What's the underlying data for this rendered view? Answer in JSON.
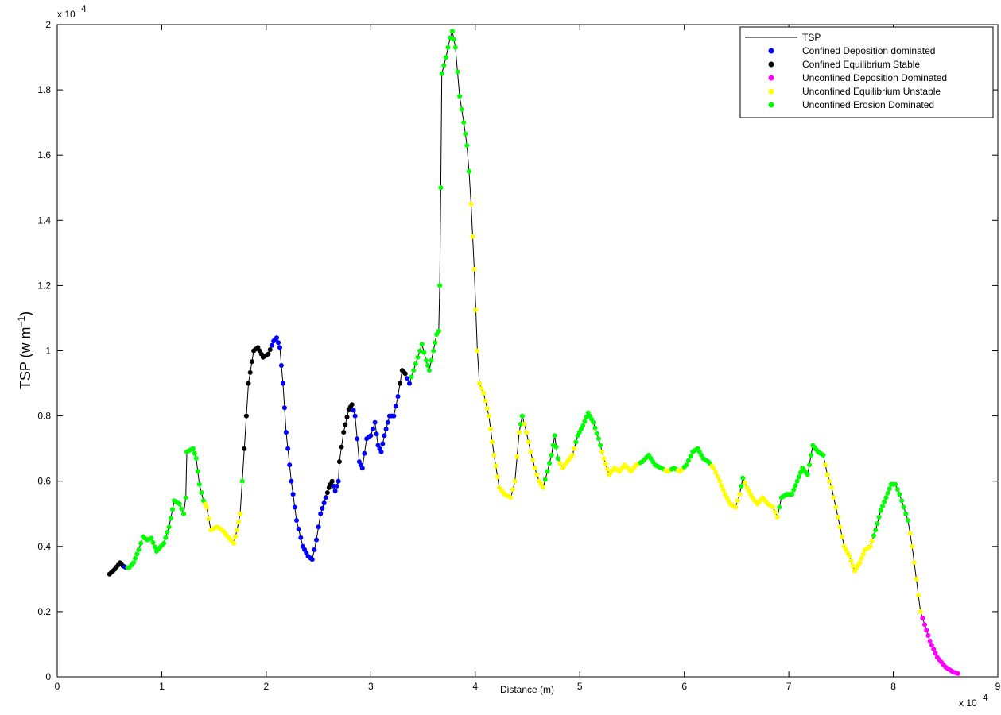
{
  "chart_data": {
    "type": "line",
    "title": "",
    "xlabel": "Distance (m)",
    "ylabel": "TSP (w m",
    "ylabel_sup": "−1",
    "ylabel_close": ")",
    "x_exponent_label": "x 10",
    "x_exponent": "4",
    "y_exponent_label": "x 10",
    "y_exponent": "4",
    "xlim": [
      0,
      90000
    ],
    "ylim": [
      0,
      20000
    ],
    "x_ticks": [
      0,
      10000,
      20000,
      30000,
      40000,
      50000,
      60000,
      70000,
      80000,
      90000
    ],
    "x_tick_labels": [
      "0",
      "1",
      "2",
      "3",
      "4",
      "5",
      "6",
      "7",
      "8",
      "9"
    ],
    "y_ticks": [
      0,
      2000,
      4000,
      6000,
      8000,
      10000,
      12000,
      14000,
      16000,
      18000,
      20000
    ],
    "y_tick_labels": [
      "0",
      "0.2",
      "0.4",
      "0.6",
      "0.8",
      "1",
      "1.2",
      "1.4",
      "1.6",
      "1.8",
      "2"
    ],
    "grid": false,
    "legend_position": "top-right",
    "colors": {
      "line": "#000000",
      "confined_deposition": "#0000ff",
      "confined_equilibrium": "#000000",
      "unconfined_deposition": "#ff00ff",
      "unconfined_equilibrium": "#ffff00",
      "unconfined_erosion": "#00ff00"
    },
    "legend": [
      {
        "name": "TSP",
        "kind": "line",
        "color_key": "line"
      },
      {
        "name": "Confined Deposition dominated",
        "kind": "marker",
        "color_key": "confined_deposition"
      },
      {
        "name": "Confined Equilibrium Stable",
        "kind": "marker",
        "color_key": "confined_equilibrium"
      },
      {
        "name": "Unconfined Deposition Dominated",
        "kind": "marker",
        "color_key": "unconfined_deposition"
      },
      {
        "name": "Unconfined Equilibrium Unstable",
        "kind": "marker",
        "color_key": "unconfined_equilibrium"
      },
      {
        "name": "Unconfined Erosion Dominated",
        "kind": "marker",
        "color_key": "unconfined_erosion"
      }
    ],
    "profile": [
      [
        5000,
        3150,
        "k"
      ],
      [
        5500,
        3300,
        "k"
      ],
      [
        6000,
        3500,
        "k"
      ],
      [
        6300,
        3400,
        "k"
      ],
      [
        6600,
        3350,
        "b"
      ],
      [
        6900,
        3350,
        "g"
      ],
      [
        7300,
        3500,
        "g"
      ],
      [
        7800,
        3900,
        "g"
      ],
      [
        8200,
        4300,
        "g"
      ],
      [
        8600,
        4200,
        "g"
      ],
      [
        9000,
        4250,
        "g"
      ],
      [
        9500,
        3850,
        "g"
      ],
      [
        10200,
        4100,
        "g"
      ],
      [
        10700,
        4600,
        "g"
      ],
      [
        11200,
        5400,
        "g"
      ],
      [
        11700,
        5300,
        "g"
      ],
      [
        12100,
        5000,
        "g"
      ],
      [
        12300,
        5500,
        "g"
      ],
      [
        12400,
        6900,
        "g"
      ],
      [
        13000,
        7000,
        "g"
      ],
      [
        13300,
        6700,
        "g"
      ],
      [
        13600,
        5900,
        "g"
      ],
      [
        14000,
        5400,
        "g"
      ],
      [
        14300,
        5200,
        "y"
      ],
      [
        14700,
        4500,
        "y"
      ],
      [
        15300,
        4600,
        "y"
      ],
      [
        15800,
        4500,
        "y"
      ],
      [
        16300,
        4300,
        "y"
      ],
      [
        16900,
        4100,
        "y"
      ],
      [
        17200,
        4500,
        "y"
      ],
      [
        17500,
        5000,
        "y"
      ],
      [
        17700,
        6000,
        "g"
      ],
      [
        17900,
        7000,
        "k"
      ],
      [
        18300,
        9000,
        "k"
      ],
      [
        18800,
        10000,
        "k"
      ],
      [
        19200,
        10100,
        "k"
      ],
      [
        19700,
        9800,
        "k"
      ],
      [
        20200,
        9900,
        "k"
      ],
      [
        20700,
        10300,
        "b"
      ],
      [
        21000,
        10400,
        "b"
      ],
      [
        21300,
        10100,
        "b"
      ],
      [
        21600,
        9000,
        "b"
      ],
      [
        21900,
        7500,
        "b"
      ],
      [
        22400,
        6000,
        "b"
      ],
      [
        22900,
        4800,
        "b"
      ],
      [
        23500,
        4000,
        "b"
      ],
      [
        24000,
        3700,
        "b"
      ],
      [
        24400,
        3600,
        "b"
      ],
      [
        24800,
        4200,
        "b"
      ],
      [
        25200,
        5000,
        "b"
      ],
      [
        25700,
        5500,
        "b"
      ],
      [
        26000,
        5800,
        "k"
      ],
      [
        26300,
        6000,
        "k"
      ],
      [
        26600,
        5700,
        "b"
      ],
      [
        26900,
        6000,
        "b"
      ],
      [
        27000,
        6600,
        "k"
      ],
      [
        27400,
        7500,
        "k"
      ],
      [
        27900,
        8200,
        "k"
      ],
      [
        28200,
        8350,
        "k"
      ],
      [
        28500,
        8000,
        "b"
      ],
      [
        28900,
        6600,
        "b"
      ],
      [
        29200,
        6400,
        "b"
      ],
      [
        29600,
        7300,
        "b"
      ],
      [
        30000,
        7400,
        "b"
      ],
      [
        30400,
        7800,
        "b"
      ],
      [
        30700,
        7100,
        "b"
      ],
      [
        31000,
        6900,
        "b"
      ],
      [
        31300,
        7400,
        "b"
      ],
      [
        31800,
        8000,
        "b"
      ],
      [
        32200,
        8000,
        "b"
      ],
      [
        32600,
        8600,
        "b"
      ],
      [
        33000,
        9400,
        "k"
      ],
      [
        33300,
        9300,
        "k"
      ],
      [
        33700,
        9000,
        "b"
      ],
      [
        34100,
        9400,
        "g"
      ],
      [
        34500,
        9800,
        "g"
      ],
      [
        34900,
        10200,
        "g"
      ],
      [
        35300,
        9700,
        "g"
      ],
      [
        35600,
        9400,
        "g"
      ],
      [
        36000,
        10000,
        "g"
      ],
      [
        36300,
        10500,
        "g"
      ],
      [
        36500,
        10600,
        "g"
      ],
      [
        36600,
        12000,
        "g"
      ],
      [
        36700,
        15000,
        "g"
      ],
      [
        36800,
        18500,
        "g"
      ],
      [
        37200,
        19000,
        "g"
      ],
      [
        37600,
        19600,
        "g"
      ],
      [
        37800,
        19800,
        "g"
      ],
      [
        38100,
        19300,
        "g"
      ],
      [
        38500,
        17800,
        "g"
      ],
      [
        38900,
        17000,
        "g"
      ],
      [
        39200,
        16300,
        "g"
      ],
      [
        39400,
        15500,
        "g"
      ],
      [
        39600,
        14500,
        "y"
      ],
      [
        39900,
        12500,
        "y"
      ],
      [
        40200,
        10000,
        "y"
      ],
      [
        40400,
        9000,
        "y"
      ],
      [
        40800,
        8700,
        "y"
      ],
      [
        41300,
        8000,
        "y"
      ],
      [
        41800,
        6800,
        "y"
      ],
      [
        42300,
        5800,
        "y"
      ],
      [
        42800,
        5600,
        "y"
      ],
      [
        43400,
        5500,
        "y"
      ],
      [
        43800,
        6000,
        "y"
      ],
      [
        44200,
        7500,
        "y"
      ],
      [
        44500,
        8000,
        "g"
      ],
      [
        44900,
        7500,
        "y"
      ],
      [
        45300,
        6900,
        "y"
      ],
      [
        45700,
        6400,
        "y"
      ],
      [
        46100,
        6000,
        "y"
      ],
      [
        46500,
        5800,
        "y"
      ],
      [
        46900,
        6300,
        "g"
      ],
      [
        47300,
        6800,
        "g"
      ],
      [
        47600,
        7400,
        "g"
      ],
      [
        47900,
        6700,
        "g"
      ],
      [
        48300,
        6400,
        "y"
      ],
      [
        48800,
        6600,
        "y"
      ],
      [
        49300,
        6800,
        "y"
      ],
      [
        49800,
        7400,
        "g"
      ],
      [
        50300,
        7700,
        "g"
      ],
      [
        50800,
        8100,
        "g"
      ],
      [
        51300,
        7800,
        "g"
      ],
      [
        51800,
        7300,
        "g"
      ],
      [
        52300,
        6700,
        "y"
      ],
      [
        52800,
        6200,
        "y"
      ],
      [
        53300,
        6400,
        "y"
      ],
      [
        53800,
        6300,
        "y"
      ],
      [
        54300,
        6500,
        "y"
      ],
      [
        54900,
        6300,
        "y"
      ],
      [
        55400,
        6500,
        "y"
      ],
      [
        56000,
        6600,
        "g"
      ],
      [
        56600,
        6800,
        "g"
      ],
      [
        57200,
        6500,
        "g"
      ],
      [
        57800,
        6400,
        "g"
      ],
      [
        58400,
        6300,
        "y"
      ],
      [
        59000,
        6400,
        "g"
      ],
      [
        59600,
        6300,
        "y"
      ],
      [
        60200,
        6500,
        "g"
      ],
      [
        60800,
        6900,
        "g"
      ],
      [
        61300,
        7000,
        "g"
      ],
      [
        61800,
        6700,
        "g"
      ],
      [
        62300,
        6600,
        "g"
      ],
      [
        62800,
        6400,
        "y"
      ],
      [
        63400,
        6000,
        "y"
      ],
      [
        63900,
        5600,
        "y"
      ],
      [
        64400,
        5300,
        "y"
      ],
      [
        64900,
        5200,
        "y"
      ],
      [
        65300,
        5600,
        "y"
      ],
      [
        65600,
        6100,
        "g"
      ],
      [
        66000,
        5800,
        "y"
      ],
      [
        66500,
        5500,
        "y"
      ],
      [
        67000,
        5300,
        "y"
      ],
      [
        67500,
        5500,
        "y"
      ],
      [
        68000,
        5300,
        "y"
      ],
      [
        68500,
        5200,
        "y"
      ],
      [
        68900,
        4900,
        "y"
      ],
      [
        69300,
        5500,
        "g"
      ],
      [
        69800,
        5600,
        "g"
      ],
      [
        70300,
        5600,
        "g"
      ],
      [
        70800,
        6000,
        "g"
      ],
      [
        71300,
        6400,
        "g"
      ],
      [
        71800,
        6200,
        "g"
      ],
      [
        72300,
        7100,
        "g"
      ],
      [
        72800,
        6900,
        "g"
      ],
      [
        73300,
        6800,
        "g"
      ],
      [
        73700,
        6200,
        "y"
      ],
      [
        74100,
        5800,
        "y"
      ],
      [
        74500,
        5200,
        "y"
      ],
      [
        74900,
        4600,
        "y"
      ],
      [
        75300,
        4000,
        "y"
      ],
      [
        75800,
        3700,
        "y"
      ],
      [
        76300,
        3250,
        "y"
      ],
      [
        76800,
        3500,
        "y"
      ],
      [
        77300,
        3900,
        "y"
      ],
      [
        77800,
        4000,
        "y"
      ],
      [
        78300,
        4500,
        "g"
      ],
      [
        78800,
        5100,
        "g"
      ],
      [
        79300,
        5500,
        "g"
      ],
      [
        79800,
        5900,
        "g"
      ],
      [
        80200,
        5900,
        "g"
      ],
      [
        80600,
        5600,
        "g"
      ],
      [
        81000,
        5200,
        "g"
      ],
      [
        81400,
        4800,
        "g"
      ],
      [
        81800,
        4000,
        "y"
      ],
      [
        82200,
        3000,
        "y"
      ],
      [
        82600,
        2000,
        "y"
      ],
      [
        83000,
        1600,
        "m"
      ],
      [
        83500,
        1100,
        "m"
      ],
      [
        84200,
        600,
        "m"
      ],
      [
        85000,
        300,
        "m"
      ],
      [
        85700,
        150,
        "m"
      ],
      [
        86200,
        100,
        "m"
      ]
    ]
  }
}
